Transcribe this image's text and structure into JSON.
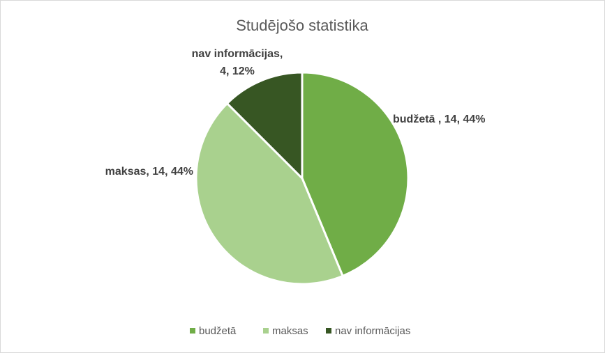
{
  "chart_data": {
    "type": "pie",
    "title": "Studējošo statistika",
    "categories": [
      "budžetā",
      "maksas",
      "nav informācijas"
    ],
    "values": [
      14,
      14,
      4
    ],
    "value_labels": [
      "budžetā , 14, 44%",
      "maksas, 14, 44%",
      [
        "nav informācijas,",
        "4, 12%"
      ]
    ],
    "colors": [
      "#70ad47",
      "#a9d18e",
      "#375623"
    ],
    "legend": "bottom"
  }
}
